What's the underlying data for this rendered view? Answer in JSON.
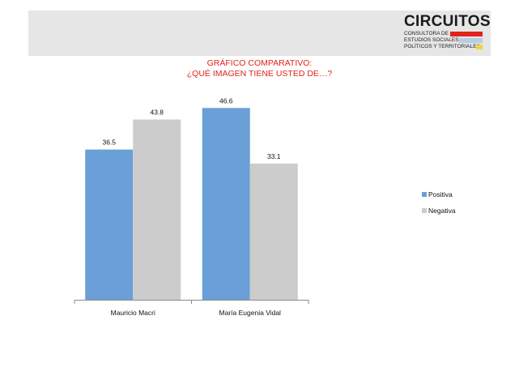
{
  "logo": {
    "brand": "CIRCUITOS",
    "lines": [
      "CONSULTORA DE",
      "ESTUDIOS SOCIALES,",
      "POLÍTICOS Y TERRITORIALES"
    ],
    "colors": [
      "#e0241b",
      "#b7cde6",
      "#f2d23a"
    ]
  },
  "title_lines": [
    "GRÁFICO COMPARATIVO:",
    "¿QUÉ IMAGEN TIENE USTED DE…?"
  ],
  "chart_data": {
    "type": "bar",
    "title": "GRÁFICO COMPARATIVO: ¿QUÉ IMAGEN TIENE USTED DE…?",
    "categories": [
      "Mauricio Macri",
      "María Eugenia Vidal"
    ],
    "series": [
      {
        "name": "Positiva",
        "values": [
          36.5,
          46.6
        ],
        "value_labels": [
          "36.5",
          "46.6"
        ],
        "color": "#6a9fd8"
      },
      {
        "name": "Negativa",
        "values": [
          43.8,
          33.1
        ],
        "value_labels": [
          "43.8",
          "33.1"
        ],
        "color": "#cccccc"
      }
    ],
    "ylim": [
      0,
      50
    ],
    "grid": false,
    "legend": "right"
  }
}
